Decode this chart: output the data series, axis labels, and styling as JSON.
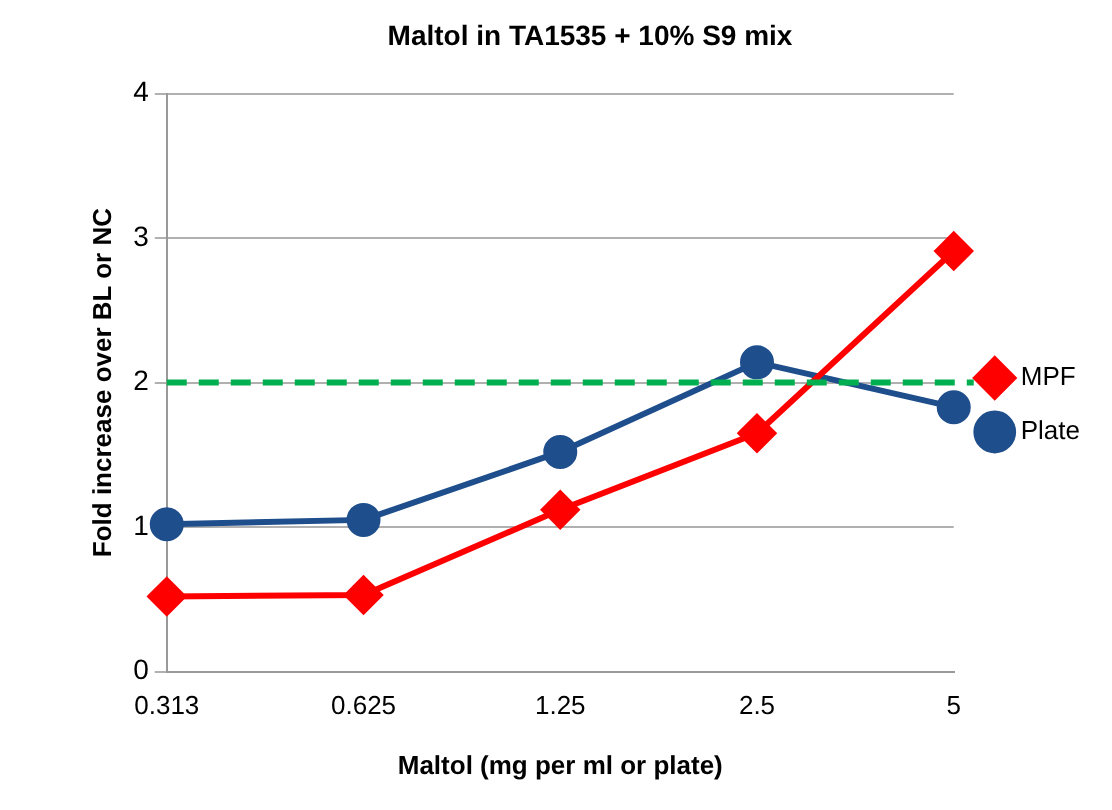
{
  "chart_data": {
    "type": "line",
    "title": "Maltol in TA1535 + 10% S9 mix",
    "xlabel": "Maltol (mg per ml or plate)",
    "ylabel": "Fold increase over BL or NC",
    "categories": [
      "0.313",
      "0.625",
      "1.25",
      "2.5",
      "5"
    ],
    "series": [
      {
        "name": "MPF",
        "color": "#ff0000",
        "marker": "diamond",
        "values": [
          0.52,
          0.53,
          1.12,
          1.65,
          2.91
        ]
      },
      {
        "name": "Plate",
        "color": "#1f4e8c",
        "marker": "circle",
        "values": [
          1.02,
          1.05,
          1.52,
          2.14,
          1.83
        ]
      }
    ],
    "ylim": [
      0,
      4
    ],
    "yticks": [
      0,
      1,
      2,
      3,
      4
    ],
    "grid": "y",
    "legend": "right",
    "line_style": "solid",
    "ref_lines": [
      {
        "axis": "y",
        "value": 2,
        "color": "#00b050",
        "line_style": "dashed"
      }
    ]
  }
}
